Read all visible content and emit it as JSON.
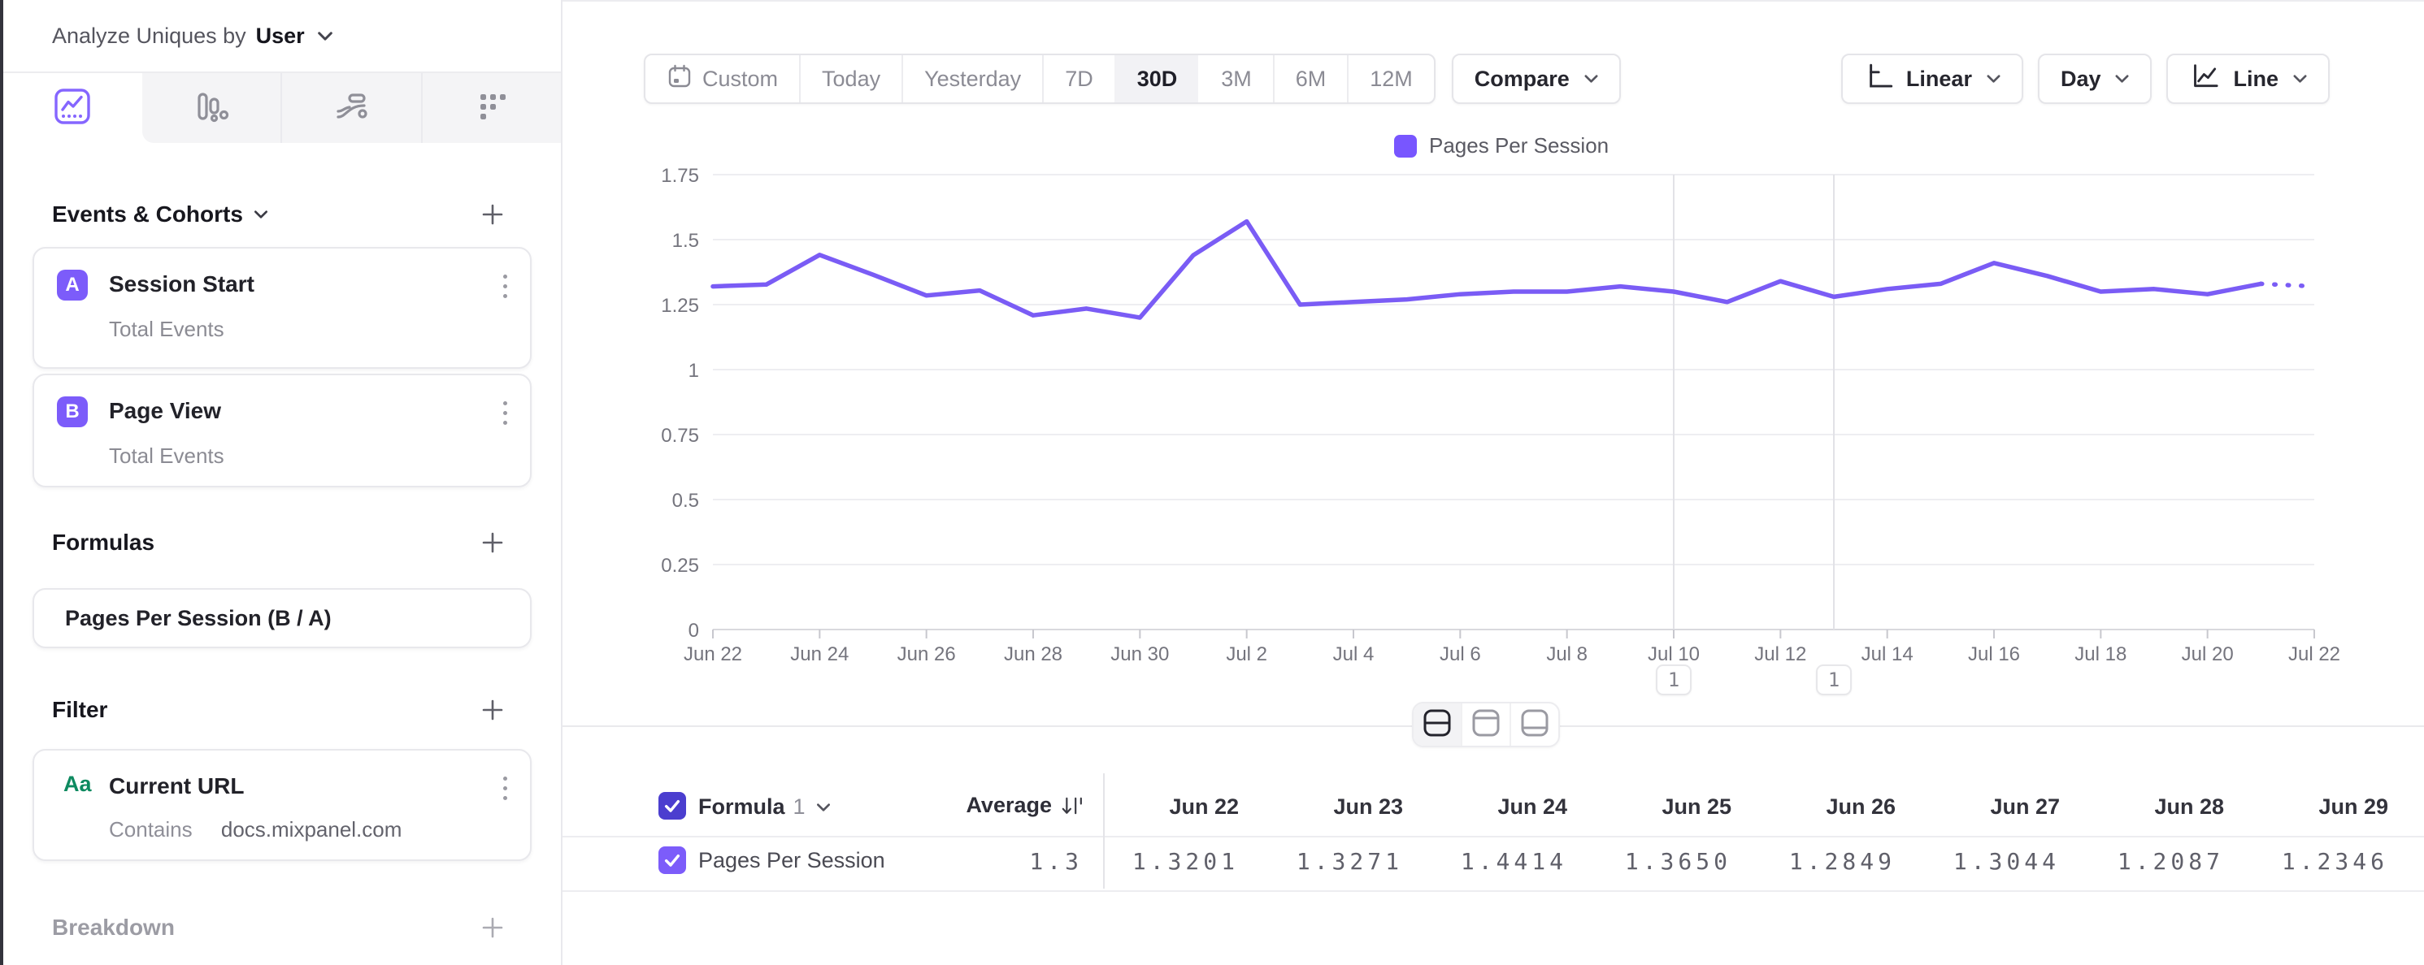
{
  "colors": {
    "accent": "#7856FF",
    "line": "#7a5cf5",
    "badge": "#7c5cfa",
    "header_checkbox": "#4b3ecf",
    "row_checkbox": "#7c5cfa",
    "filter_type_green": "#0e8a60",
    "gridline": "#eeeef1",
    "annotation_line": "#e2e2e7"
  },
  "sidebar": {
    "analyze": {
      "prefix": "Analyze Uniques by",
      "selected": "User"
    },
    "tabs": [
      "insights-line-chart",
      "bar-chart",
      "flow-sankey",
      "grid-dots"
    ],
    "active_tab": "insights-line-chart",
    "events_section": {
      "title": "Events & Cohorts"
    },
    "events": [
      {
        "letter": "A",
        "name": "Session Start",
        "subtitle": "Total Events"
      },
      {
        "letter": "B",
        "name": "Page View",
        "subtitle": "Total Events"
      }
    ],
    "formulas_section": {
      "title": "Formulas"
    },
    "formulas": [
      {
        "name": "Pages Per Session (B / A)"
      }
    ],
    "filter_section": {
      "title": "Filter"
    },
    "filters": [
      {
        "type_label": "Aa",
        "name": "Current URL",
        "operator": "Contains",
        "value": "docs.mixpanel.com"
      }
    ],
    "breakdown_section": {
      "title": "Breakdown"
    }
  },
  "toolbar": {
    "ranges": [
      "Custom",
      "Today",
      "Yesterday",
      "7D",
      "30D",
      "3M",
      "6M",
      "12M"
    ],
    "active_range": "30D",
    "compare_label": "Compare",
    "scale_label": "Linear",
    "interval_label": "Day",
    "chart_type_label": "Line"
  },
  "chart_data": {
    "type": "line",
    "legend": [
      "Pages Per Session"
    ],
    "x": [
      "Jun 22",
      "Jun 23",
      "Jun 24",
      "Jun 25",
      "Jun 26",
      "Jun 27",
      "Jun 28",
      "Jun 29",
      "Jun 30",
      "Jul 1",
      "Jul 2",
      "Jul 3",
      "Jul 4",
      "Jul 5",
      "Jul 6",
      "Jul 7",
      "Jul 8",
      "Jul 9",
      "Jul 10",
      "Jul 11",
      "Jul 12",
      "Jul 13",
      "Jul 14",
      "Jul 15",
      "Jul 16",
      "Jul 17",
      "Jul 18",
      "Jul 19",
      "Jul 20",
      "Jul 21",
      "Jul 22"
    ],
    "series": [
      {
        "name": "Pages Per Session",
        "values": [
          1.3201,
          1.3271,
          1.4414,
          1.365,
          1.2849,
          1.3044,
          1.2087,
          1.2346,
          1.2,
          1.44,
          1.57,
          1.25,
          1.26,
          1.27,
          1.29,
          1.3,
          1.3,
          1.32,
          1.3,
          1.26,
          1.34,
          1.28,
          1.31,
          1.33,
          1.41,
          1.36,
          1.3,
          1.31,
          1.29,
          1.33,
          1.32
        ]
      }
    ],
    "dashed_from_index": 29,
    "ylim": [
      0,
      1.75
    ],
    "yticks": [
      "0",
      "0.25",
      "0.5",
      "0.75",
      "1",
      "1.25",
      "1.5",
      "1.75"
    ],
    "xtick_every": 2,
    "grid": true,
    "legend_position": "top-center",
    "annotations": [
      {
        "x_label": "Jul 10",
        "label": "1"
      },
      {
        "x_label": "Jul 13",
        "label": "1"
      }
    ]
  },
  "table": {
    "group_label": "Formula",
    "group_number": "1",
    "average_label": "Average",
    "row_label": "Pages Per Session",
    "average_value": "1.3",
    "columns": [
      "Jun 22",
      "Jun 23",
      "Jun 24",
      "Jun 25",
      "Jun 26",
      "Jun 27",
      "Jun 28",
      "Jun 29"
    ],
    "values": [
      "1.3201",
      "1.3271",
      "1.4414",
      "1.3650",
      "1.2849",
      "1.3044",
      "1.2087",
      "1.2346"
    ]
  }
}
